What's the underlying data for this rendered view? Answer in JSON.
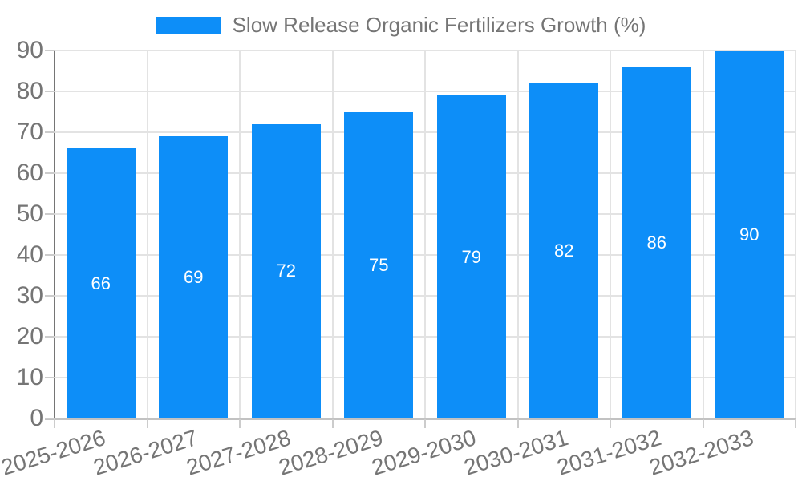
{
  "chart_data": {
    "type": "bar",
    "legend_label": "Slow Release Organic Fertilizers Growth (%)",
    "series": [
      {
        "name": "Slow Release Organic Fertilizers Growth (%)",
        "values": [
          66,
          69,
          72,
          75,
          79,
          82,
          86,
          90
        ]
      }
    ],
    "categories": [
      "2025-2026",
      "2026-2027",
      "2027-2028",
      "2028-2029",
      "2029-2030",
      "2030-2031",
      "2031-2032",
      "2032-2033"
    ],
    "values": [
      66,
      69,
      72,
      75,
      79,
      82,
      86,
      90
    ],
    "value_labels": [
      "66",
      "69",
      "72",
      "75",
      "79",
      "82",
      "86",
      "90"
    ],
    "yticks": [
      0,
      10,
      20,
      30,
      40,
      50,
      60,
      70,
      80,
      90
    ],
    "ylim": [
      0,
      90
    ],
    "xlabel": "",
    "ylabel": "",
    "grid": true,
    "legend_position": "top-center",
    "colors": {
      "bar": "#0d8ef8",
      "value_label": "#ffffff",
      "axis_text": "#757575",
      "gridline": "#e3e3e3",
      "axis_line_left": "#757575",
      "axis_line_bottom": "#c2c2c2",
      "tick_mark": "#cccccc",
      "background": "#ffffff"
    },
    "x_label_rotation_deg": -17
  }
}
